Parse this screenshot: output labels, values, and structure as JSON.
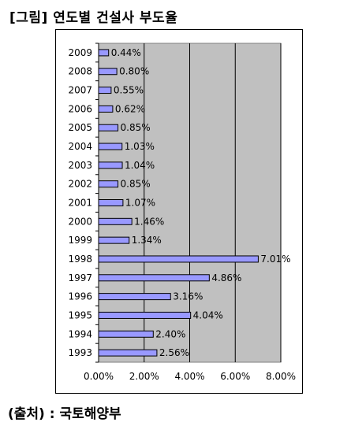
{
  "figure_title": "[그림] 연도별 건설사 부도율",
  "source_note": "(출처) : 국토해양부",
  "colors": {
    "bar": "#9999ff",
    "plot_bg": "#c0c0c0",
    "grid": "#000000"
  },
  "chart_data": {
    "type": "bar",
    "orientation": "horizontal",
    "title": "",
    "xlabel": "",
    "ylabel": "",
    "categories": [
      "2009",
      "2008",
      "2007",
      "2006",
      "2005",
      "2004",
      "2003",
      "2002",
      "2001",
      "2000",
      "1999",
      "1998",
      "1997",
      "1996",
      "1995",
      "1994",
      "1993"
    ],
    "values": [
      0.44,
      0.8,
      0.55,
      0.62,
      0.85,
      1.03,
      1.04,
      0.85,
      1.07,
      1.46,
      1.34,
      7.01,
      4.86,
      3.16,
      4.04,
      2.4,
      2.56
    ],
    "data_labels": [
      "0.44%",
      "0.80%",
      "0.55%",
      "0.62%",
      "0.85%",
      "1.03%",
      "1.04%",
      "0.85%",
      "1.07%",
      "1.46%",
      "1.34%",
      "7.01%",
      "4.86%",
      "3.16%",
      "4.04%",
      "2.40%",
      "2.56%"
    ],
    "xlim": [
      0,
      8
    ],
    "x_ticks": [
      0,
      2,
      4,
      6,
      8
    ],
    "x_tick_labels": [
      "0.00%",
      "2.00%",
      "4.00%",
      "6.00%",
      "8.00%"
    ],
    "grid": true,
    "legend": false
  }
}
